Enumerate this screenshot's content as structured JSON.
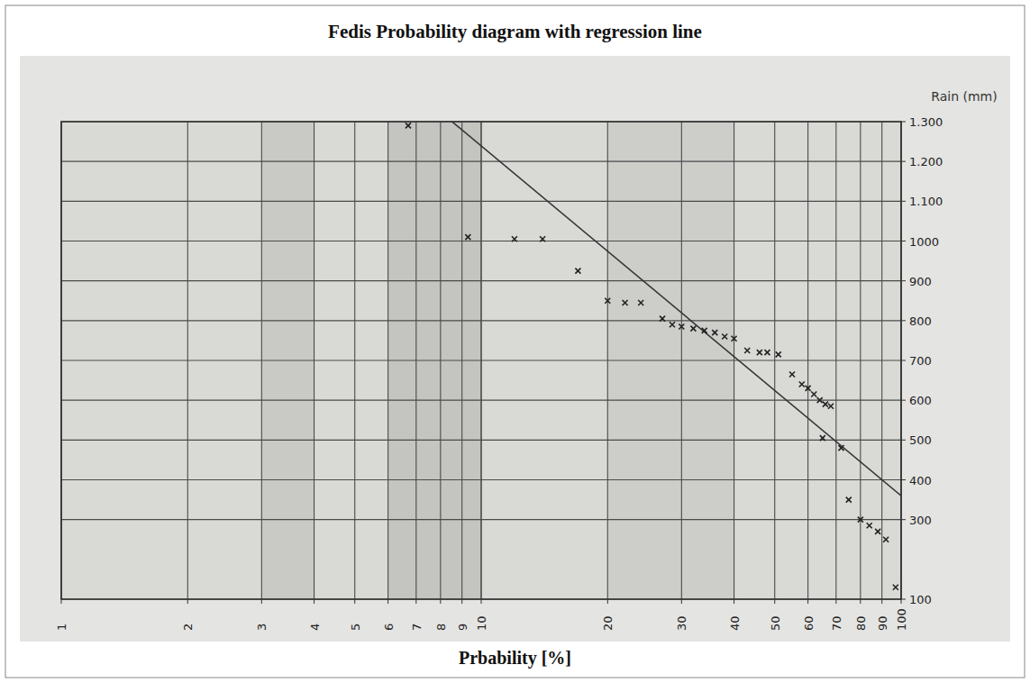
{
  "chart_data": {
    "type": "scatter",
    "title": "Fedis Probability diagram with regression line",
    "x_label": "Prbability [%]",
    "y_label": "Rain (mm)",
    "x": [
      6.7,
      9.3,
      12,
      14,
      17,
      20,
      22,
      24,
      27,
      28.5,
      30,
      32,
      34,
      36,
      38,
      40,
      43,
      46,
      48,
      51,
      55,
      58,
      60,
      62,
      64,
      65,
      66,
      68,
      72,
      75,
      80,
      84,
      88,
      92,
      97
    ],
    "values": [
      1290,
      1010,
      1005,
      1005,
      925,
      850,
      845,
      845,
      805,
      790,
      785,
      780,
      775,
      770,
      760,
      755,
      725,
      720,
      720,
      715,
      665,
      640,
      630,
      615,
      600,
      505,
      590,
      585,
      480,
      350,
      300,
      285,
      270,
      250,
      130
    ],
    "color": "#222222",
    "marker": "x",
    "regression_line": {
      "x": [
        8.3,
        100
      ],
      "values": [
        1310,
        360
      ],
      "color": "#333333",
      "line_style": "solid"
    },
    "xlim": [
      1,
      100
    ],
    "ylim": [
      100,
      1300
    ],
    "log": "x",
    "grid": true,
    "xticks": [
      1,
      2,
      3,
      4,
      5,
      6,
      7,
      8,
      9,
      10,
      20,
      30,
      40,
      50,
      60,
      70,
      80,
      90,
      100
    ],
    "yticks": [
      {
        "value": 100,
        "label": "100"
      },
      300,
      400,
      500,
      600,
      700,
      800,
      900,
      1000,
      {
        "value": 1100,
        "label": "1.100"
      },
      {
        "value": 1200,
        "label": "1.200"
      },
      {
        "value": 1300,
        "label": "1.300"
      }
    ]
  }
}
